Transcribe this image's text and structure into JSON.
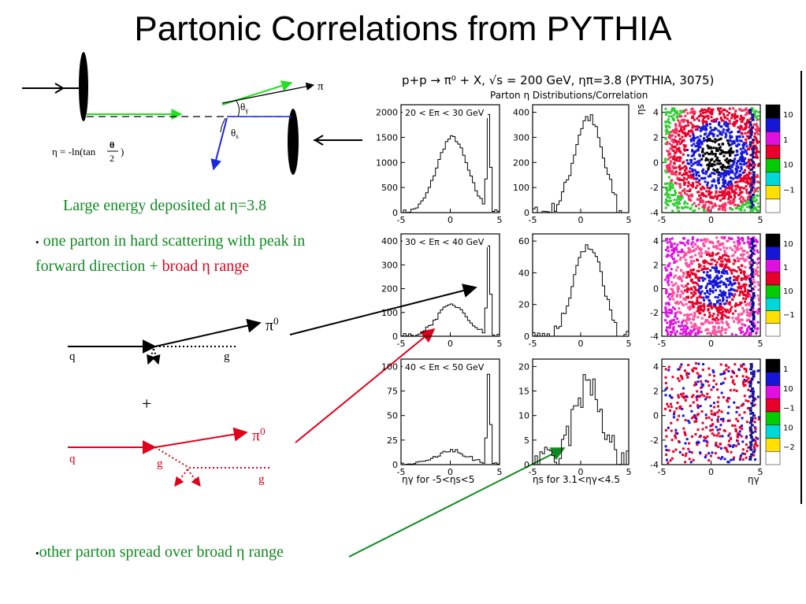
{
  "slide": {
    "title": "Partonic Correlations from PYTHIA",
    "eta_formula_prefix": "η = -ln(tan",
    "eta_formula_theta": "θ",
    "eta_formula_two": "2",
    "eta_formula_suffix": ")",
    "diagram_labels": {
      "pi": "π",
      "theta_gamma": "θ",
      "theta_gamma_sub": "γ",
      "theta_s": "θ",
      "theta_s_sub": "s"
    },
    "line1": "Large energy deposited at η=3.8",
    "bullet1_a": "one parton in hard scattering with peak in forward direction",
    "bullet1_plus": "+",
    "bullet1_b": "broad η range",
    "pi0_upper": "π",
    "pi0_upper_sup": "0",
    "q_label_black": "q",
    "g_label_black": "g",
    "plus": "+",
    "pi0_lower": "π",
    "pi0_lower_sup": "0",
    "q_label_red": "q",
    "g_label_red1": "g",
    "g_label_red2": "g",
    "bullet2": "other parton spread over broad η range",
    "bullet_glyph": "•"
  },
  "figure": {
    "header": "p+p → π⁰ + X, √s = 200 GeV, ηπ=3.8 (PYTHIA, 3075)",
    "subheader": "Parton η Distributions/Correlation",
    "rows": [
      {
        "energy_label": "20 < Eπ < 30 GeV"
      },
      {
        "energy_label": "30 < Eπ < 40 GeV"
      },
      {
        "energy_label": "40 < Eπ < 50 GeV"
      }
    ],
    "xlabel_col1": "ηγ for -5<ηs<5",
    "xlabel_col2": "ηs for 3.1<ηγ<4.5",
    "xlabel_col3": "ηγ",
    "ylabel_col3": "ηs",
    "x_ticks": [
      "-5",
      "0",
      "5"
    ],
    "row1_col1_yticks": [
      "0",
      "500",
      "1000",
      "1500",
      "2000"
    ],
    "row1_col2_yticks": [
      "0",
      "100",
      "200",
      "300",
      "400"
    ],
    "row1_col3_yticks": [
      "-4",
      "-2",
      "0",
      "2",
      "4"
    ],
    "row2_col1_yticks": [
      "0",
      "100",
      "200",
      "300",
      "400"
    ],
    "row2_col2_yticks": [
      "0",
      "20",
      "40",
      "60"
    ],
    "row2_col3_yticks": [
      "-4",
      "-2",
      "0",
      "2",
      "4"
    ],
    "row3_col1_yticks": [
      "0",
      "25",
      "50",
      "75",
      "100"
    ],
    "row3_col2_yticks": [
      "0",
      "5",
      "10",
      "15",
      "20"
    ],
    "row3_col3_yticks": [
      "-4",
      "-2",
      "0",
      "2",
      "4"
    ],
    "colorbar_row1": [
      "10",
      "1",
      "10",
      "−1"
    ],
    "colorbar_row2": [
      "10",
      "1",
      "10",
      "−1"
    ],
    "colorbar_row3": [
      "1",
      "10",
      "−1",
      "10",
      "−2"
    ]
  },
  "colors": {
    "green": "#0f8a1f",
    "red": "#e1001a",
    "blue": "#1616d8"
  }
}
